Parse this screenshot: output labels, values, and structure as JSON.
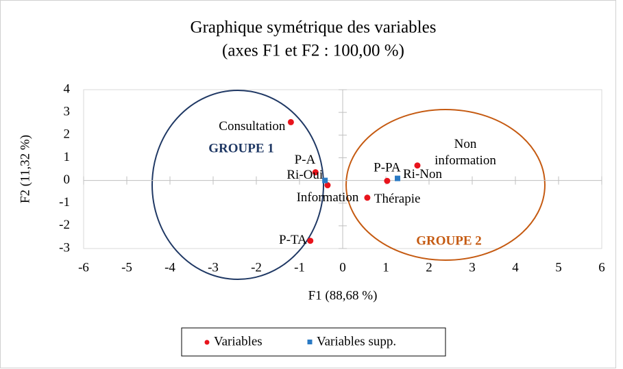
{
  "chart_data": {
    "type": "scatter",
    "title": "Graphique symétrique des variables",
    "subtitle": "(axes F1 et F2 : 100,00 %)",
    "xlabel": "F1 (88,68 %)",
    "ylabel": "F2 (11,32 %)",
    "xlim": [
      -6,
      6
    ],
    "xticks": [
      -6,
      -5,
      -4,
      -3,
      -2,
      -1,
      0,
      1,
      2,
      3,
      4,
      5,
      6
    ],
    "ylim": [
      -3,
      4
    ],
    "yticks": [
      -3,
      -2,
      -1,
      0,
      1,
      2,
      3,
      4
    ],
    "series": [
      {
        "name": "Variables",
        "color": "#e8141c",
        "marker": "circle",
        "labels": [
          [
            "Consultation"
          ],
          [
            "P-A"
          ],
          [
            "Information"
          ],
          [
            "P-TA"
          ],
          [
            "P-PA"
          ],
          [
            "Non",
            "information"
          ],
          [
            "Thérapie"
          ]
        ],
        "x": [
          -1.2,
          -0.63,
          -0.35,
          -0.75,
          1.03,
          1.73,
          0.57
        ],
        "values": [
          2.57,
          0.36,
          -0.21,
          -2.66,
          -0.02,
          0.66,
          -0.76
        ]
      },
      {
        "name": "Variables supp.",
        "color": "#2a7ac4",
        "marker": "square",
        "labels": [
          [
            "Ri-Oui"
          ],
          [
            "Ri-Non"
          ]
        ],
        "x": [
          -0.41,
          1.27
        ],
        "values": [
          0.0,
          0.09
        ]
      }
    ],
    "annotations": [
      "GROUPE 1",
      "GROUPE 2"
    ]
  }
}
